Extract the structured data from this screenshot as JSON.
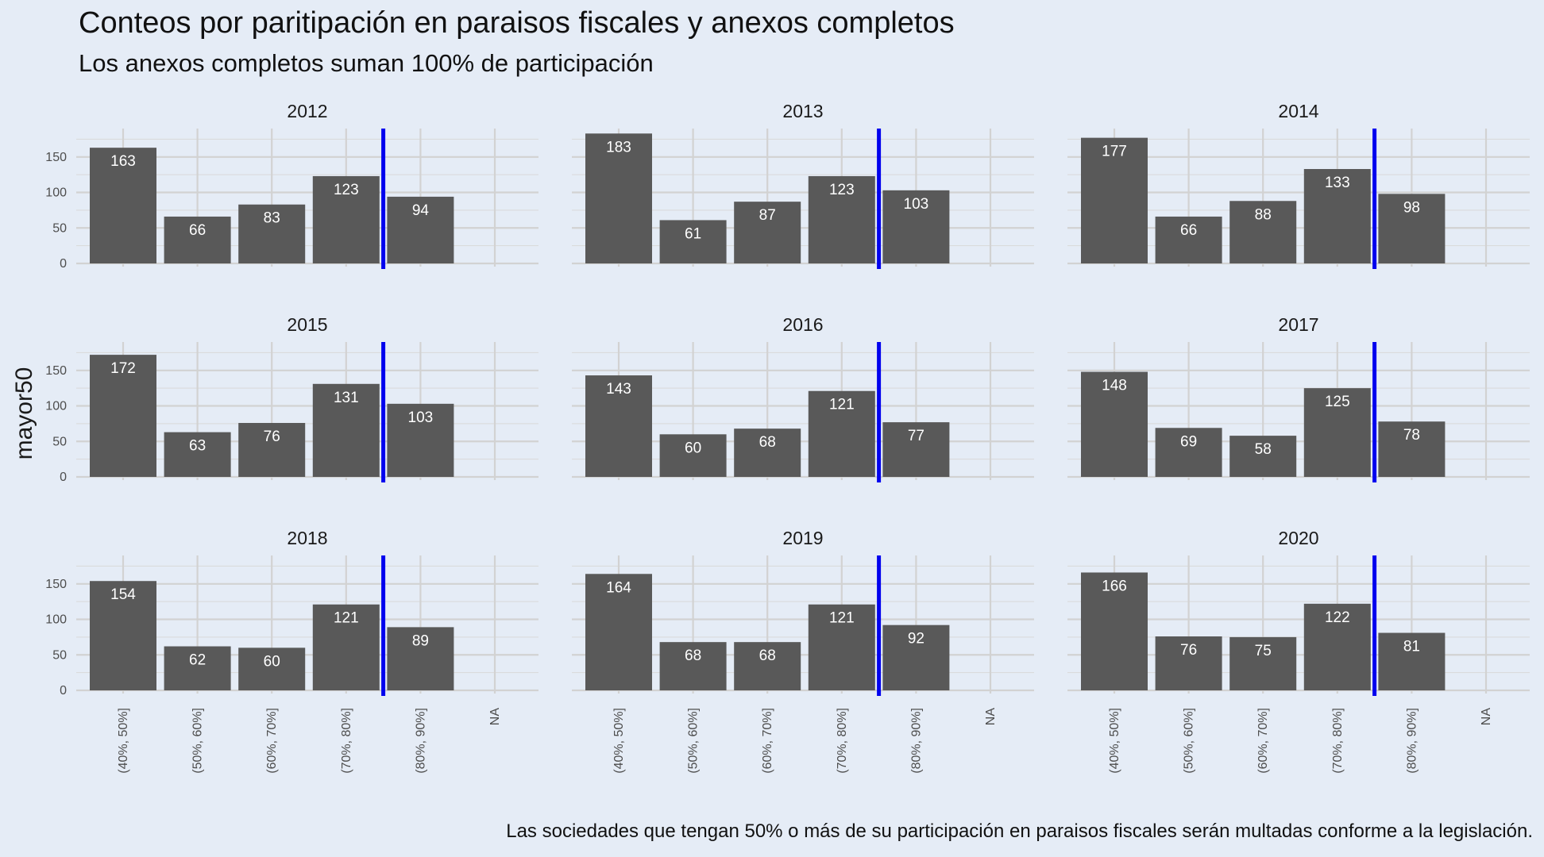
{
  "chart_data": {
    "type": "bar",
    "title": "Conteos por paritipación en paraisos fiscales y anexos completos",
    "subtitle": "Los anexos completos suman 100% de participación",
    "caption": "Las sociedades que tengan 50% o más de su participación en paraisos fiscales serán multadas conforme a la legislación.",
    "xlabel": "",
    "ylabel": "mayor50",
    "categories": [
      "(40%, 50%]",
      "(50%, 60%]",
      "(60%, 70%]",
      "(70%, 80%]",
      "(80%, 90%]",
      "NA"
    ],
    "ylim": [
      0,
      190
    ],
    "yticks": [
      0,
      50,
      100,
      150
    ],
    "reference_line": {
      "between": [
        "(70%, 80%]",
        "(80%, 90%]"
      ],
      "color": "#0000ee"
    },
    "bar_color": "#595959",
    "panels": [
      {
        "year": "2012",
        "values": [
          163,
          66,
          83,
          123,
          94,
          null
        ]
      },
      {
        "year": "2013",
        "values": [
          183,
          61,
          87,
          123,
          103,
          null
        ]
      },
      {
        "year": "2014",
        "values": [
          177,
          66,
          88,
          133,
          98,
          null
        ]
      },
      {
        "year": "2015",
        "values": [
          172,
          63,
          76,
          131,
          103,
          null
        ]
      },
      {
        "year": "2016",
        "values": [
          143,
          60,
          68,
          121,
          77,
          null
        ]
      },
      {
        "year": "2017",
        "values": [
          148,
          69,
          58,
          125,
          78,
          null
        ]
      },
      {
        "year": "2018",
        "values": [
          154,
          62,
          60,
          121,
          89,
          null
        ]
      },
      {
        "year": "2019",
        "values": [
          164,
          68,
          68,
          121,
          92,
          null
        ]
      },
      {
        "year": "2020",
        "values": [
          166,
          76,
          75,
          122,
          81,
          null
        ]
      }
    ]
  }
}
